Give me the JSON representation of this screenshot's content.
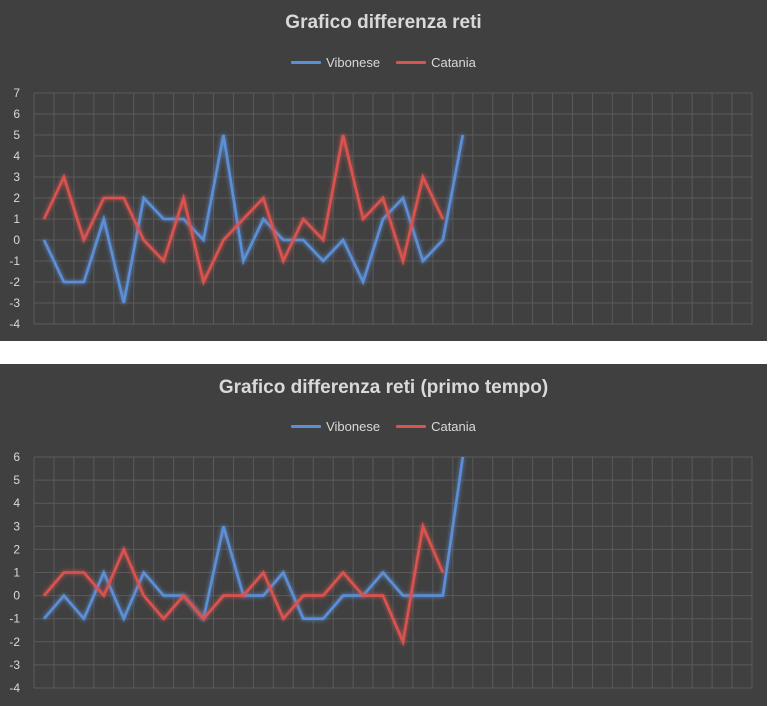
{
  "colors": {
    "background": "#404040",
    "grid": "#5a5a5a",
    "text": "#d9d9d9",
    "vibonese": "#5b8fd6",
    "catania": "#d9534f"
  },
  "chart_data": [
    {
      "type": "line",
      "title": "Grafico differenza reti",
      "legend_position": "top",
      "grid": true,
      "ylim": [
        -4,
        7
      ],
      "yticks": [
        7,
        6,
        5,
        4,
        3,
        2,
        1,
        0,
        -1,
        -2,
        -3,
        -4
      ],
      "n_categories": 36,
      "series": [
        {
          "name": "Vibonese",
          "color": "#5b8fd6",
          "values": [
            0,
            -2,
            -2,
            1,
            -3,
            2,
            1,
            1,
            0,
            5,
            -1,
            1,
            0,
            0,
            -1,
            0,
            -2,
            1,
            2,
            -1,
            0,
            5
          ]
        },
        {
          "name": "Catania",
          "color": "#d9534f",
          "values": [
            1,
            3,
            0,
            2,
            2,
            0,
            -1,
            2,
            -2,
            0,
            1,
            2,
            -1,
            1,
            0,
            5,
            1,
            2,
            -1,
            3,
            1
          ]
        }
      ]
    },
    {
      "type": "line",
      "title": "Grafico differenza reti (primo tempo)",
      "legend_position": "top",
      "grid": true,
      "ylim": [
        -4,
        6
      ],
      "yticks": [
        6,
        5,
        4,
        3,
        2,
        1,
        0,
        -1,
        -2,
        -3,
        -4
      ],
      "n_categories": 36,
      "series": [
        {
          "name": "Vibonese",
          "color": "#5b8fd6",
          "values": [
            -1,
            0,
            -1,
            1,
            -1,
            1,
            0,
            0,
            -1,
            3,
            0,
            0,
            1,
            -1,
            -1,
            0,
            0,
            1,
            0,
            0,
            0,
            6
          ]
        },
        {
          "name": "Catania",
          "color": "#d9534f",
          "values": [
            0,
            1,
            1,
            0,
            2,
            0,
            -1,
            0,
            -1,
            0,
            0,
            1,
            -1,
            0,
            0,
            1,
            0,
            0,
            -2,
            3,
            1
          ]
        }
      ]
    }
  ]
}
